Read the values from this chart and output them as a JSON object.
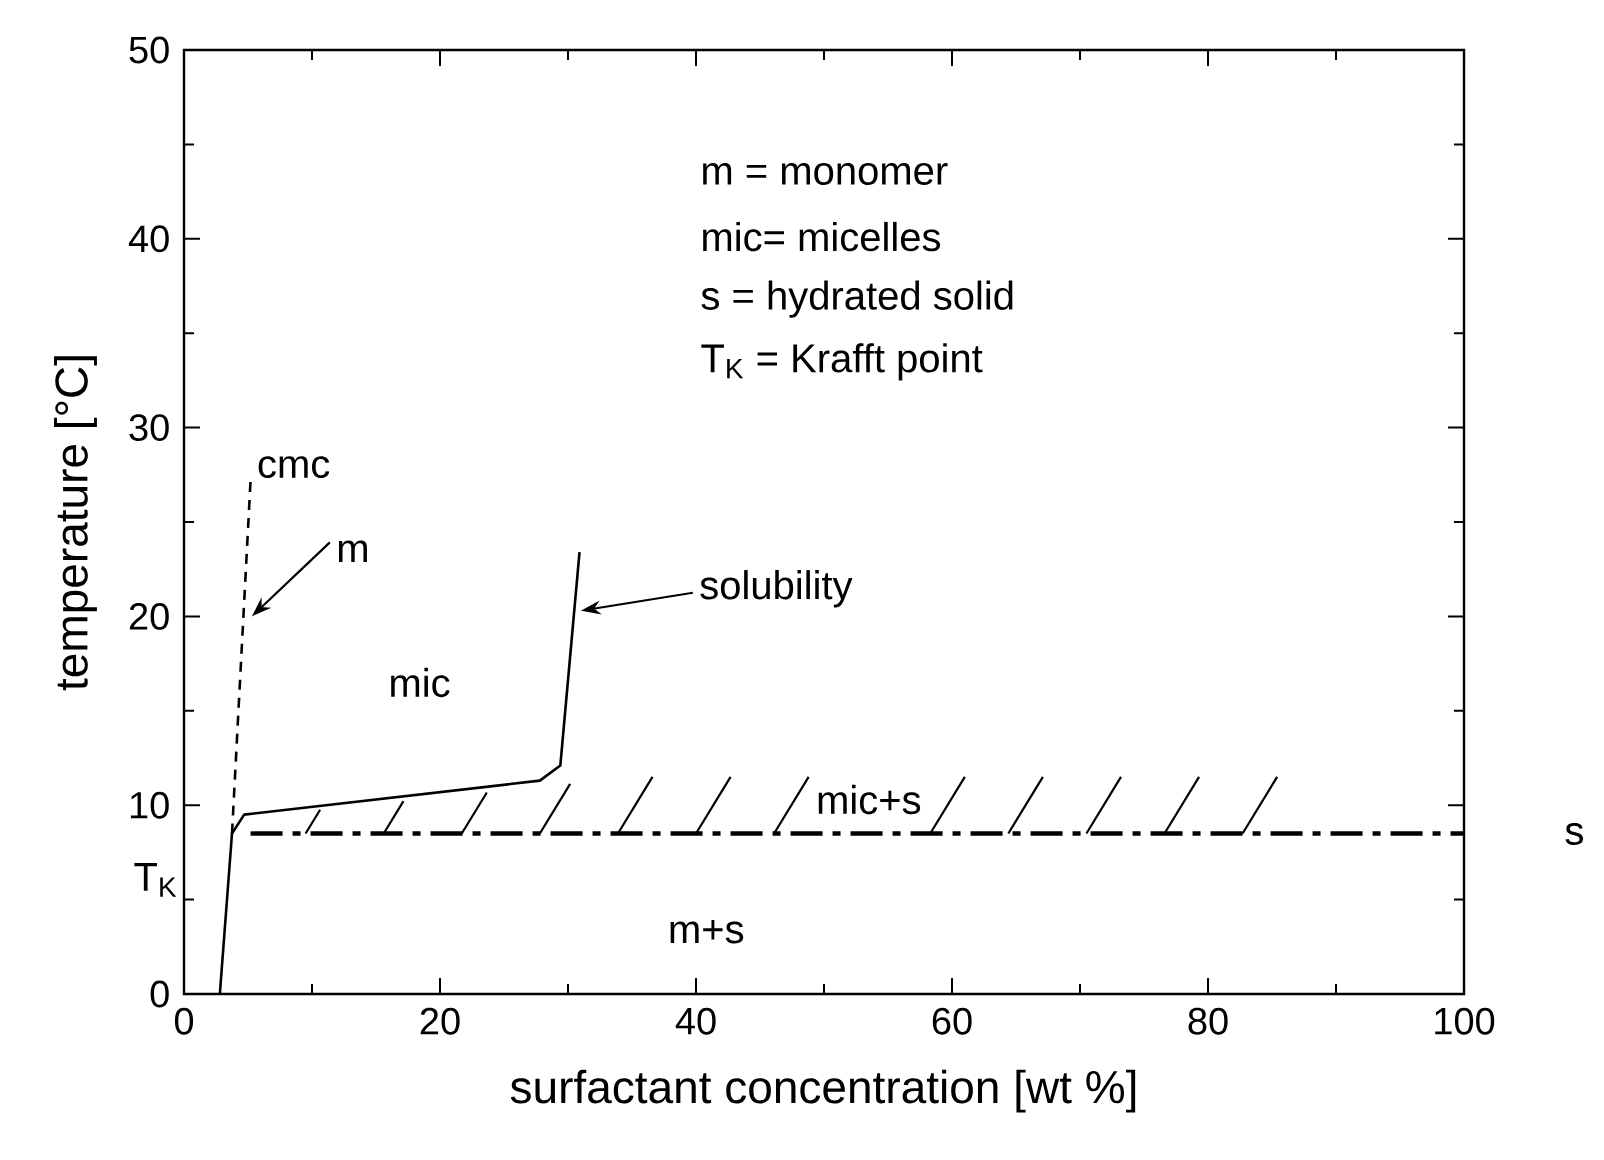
{
  "chart_data": {
    "type": "line",
    "xlabel": "surfactant concentration [wt %]",
    "ylabel": "temperature [°C]",
    "xlim": [
      0,
      100
    ],
    "ylim": [
      0,
      50
    ],
    "xticks": [
      0,
      20,
      40,
      60,
      80,
      100
    ],
    "yticks": [
      0,
      10,
      20,
      30,
      40,
      50
    ],
    "grid": false,
    "series": [
      {
        "x": [
          2.8,
          3.75,
          4.7,
          27.8,
          29.4,
          30.9
        ],
        "values": [
          0,
          8.5,
          9.5,
          11.3,
          12.1,
          23.4
        ],
        "color": "#000000",
        "line_style": "solid"
      },
      {
        "x": [
          3.75,
          5.2
        ],
        "values": [
          8.5,
          27.2
        ],
        "color": "#000000",
        "line_style": "dashed"
      },
      {
        "x": [
          5.2,
          100
        ],
        "values": [
          8.5,
          8.5
        ],
        "color": "#000000",
        "line_style": "dashdot"
      }
    ],
    "annotations": [
      "m  = monomer",
      "mic= micelles",
      "s    = hydrated solid",
      "T$_{K}$ = Krafft point",
      "T$_{K}$",
      "s",
      "mic",
      "mic+s",
      "m+s",
      {
        "text": "cmc",
        "x": 5.2,
        "y": 27.2
      },
      {
        "text": "m",
        "x": 5.3,
        "y": 20
      },
      {
        "text": "solubility",
        "x": 31,
        "y": 20.3
      }
    ]
  }
}
